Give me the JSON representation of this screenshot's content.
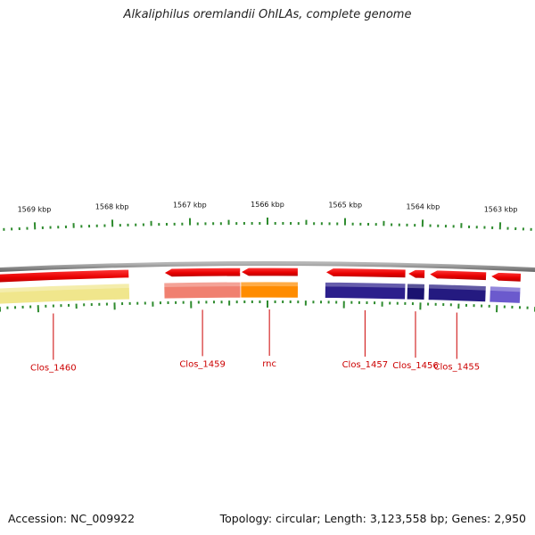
{
  "title": "Alkaliphilus oremlandii OhILAs, complete genome",
  "accession": "Accession: NC_009922",
  "summary": "Topology: circular; Length: 3,123,558 bp; Genes: 2,950",
  "colors": {
    "backbone": "#8c8c8c",
    "tick": "#2e8b2e",
    "ruler_label": "#111111",
    "gene_label": "#cc0000",
    "gene_strand": "#ee1111"
  },
  "ruler": {
    "labels": [
      {
        "kbp": 1569,
        "text": "1569 kbp"
      },
      {
        "kbp": 1568,
        "text": "1568 kbp"
      },
      {
        "kbp": 1567,
        "text": "1567 kbp"
      },
      {
        "kbp": 1566,
        "text": "1566 kbp"
      },
      {
        "kbp": 1565,
        "text": "1565 kbp"
      },
      {
        "kbp": 1564,
        "text": "1564 kbp"
      },
      {
        "kbp": 1563,
        "text": "1563 kbp"
      }
    ]
  },
  "genes": [
    {
      "label": "Clos_1460",
      "kbp_start": 1567.8,
      "kbp_end": 1569.8,
      "arrow": "none",
      "row2_color": "#f0e68c"
    },
    {
      "label": "Clos_1459",
      "kbp_start": 1566.35,
      "kbp_end": 1567.35,
      "arrow": "left",
      "row2_color": "#f08070"
    },
    {
      "label": "rnc",
      "kbp_start": 1565.6,
      "kbp_end": 1566.35,
      "arrow": "left",
      "row2_color": "#ff8c00"
    },
    {
      "label": "Clos_1457",
      "kbp_start": 1564.2,
      "kbp_end": 1565.25,
      "arrow": "left",
      "row2_color": "#2c1f8c"
    },
    {
      "label": "Clos_1456",
      "kbp_start": 1563.95,
      "kbp_end": 1564.18,
      "arrow": "left",
      "row2_color": "#1a1270"
    },
    {
      "label": "Clos_1455",
      "kbp_start": 1563.15,
      "kbp_end": 1563.9,
      "arrow": "left",
      "row2_color": "#241a80"
    },
    {
      "label": "",
      "kbp_start": 1562.7,
      "kbp_end": 1563.1,
      "arrow": "left",
      "row2_color": "#6b5acd"
    }
  ]
}
